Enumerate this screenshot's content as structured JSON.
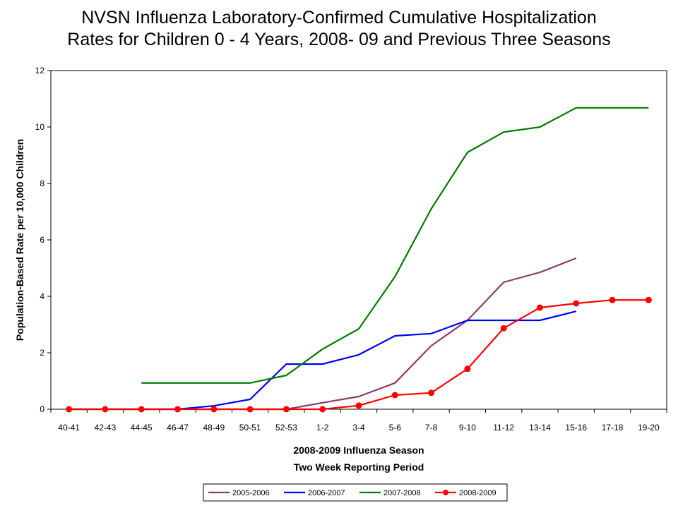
{
  "chart_data": {
    "type": "line",
    "title_lines": [
      "NVSN Influenza Laboratory-Confirmed Cumulative Hospitalization",
      "Rates for Children 0 - 4 Years, 2008- 09 and Previous Three Seasons"
    ],
    "xlabel_lines": [
      "2008-2009 Influenza Season",
      "Two Week Reporting Period"
    ],
    "ylabel": "Population-Based Rate per 10,000 Children",
    "ylim": [
      0,
      12
    ],
    "yticks": [
      0,
      2,
      4,
      6,
      8,
      10,
      12
    ],
    "categories": [
      "40-41",
      "42-43",
      "44-45",
      "46-47",
      "48-49",
      "50-51",
      "52-53",
      "1-2",
      "3-4",
      "5-6",
      "7-8",
      "9-10",
      "11-12",
      "13-14",
      "15-16",
      "17-18",
      "19-20"
    ],
    "legend_position": "bottom",
    "grid": false,
    "series": [
      {
        "name": "2005-2006",
        "color": "#8B3A6B",
        "marker": "none",
        "values": [
          0,
          0,
          0,
          0,
          0,
          0,
          0,
          0.23,
          0.45,
          0.93,
          2.25,
          3.15,
          4.5,
          4.85,
          5.35,
          null,
          null
        ]
      },
      {
        "name": "2006-2007",
        "color": "#0000FF",
        "marker": "none",
        "values": [
          0,
          0,
          0,
          0,
          0.12,
          0.35,
          1.6,
          1.6,
          1.93,
          2.6,
          2.68,
          3.15,
          3.15,
          3.15,
          3.47,
          null,
          null
        ]
      },
      {
        "name": "2007-2008",
        "color": "#007A00",
        "marker": "none",
        "values": [
          null,
          null,
          0.93,
          0.93,
          0.93,
          0.93,
          1.2,
          2.13,
          2.85,
          4.7,
          7.1,
          9.1,
          9.82,
          10.0,
          10.68,
          10.68,
          10.68
        ]
      },
      {
        "name": "2008-2009",
        "color": "#FF0000",
        "marker": "circle",
        "values": [
          0,
          0,
          0,
          0,
          0,
          0,
          0,
          0,
          0.13,
          0.5,
          0.58,
          1.43,
          2.87,
          3.6,
          3.75,
          3.87,
          3.87
        ]
      }
    ]
  }
}
